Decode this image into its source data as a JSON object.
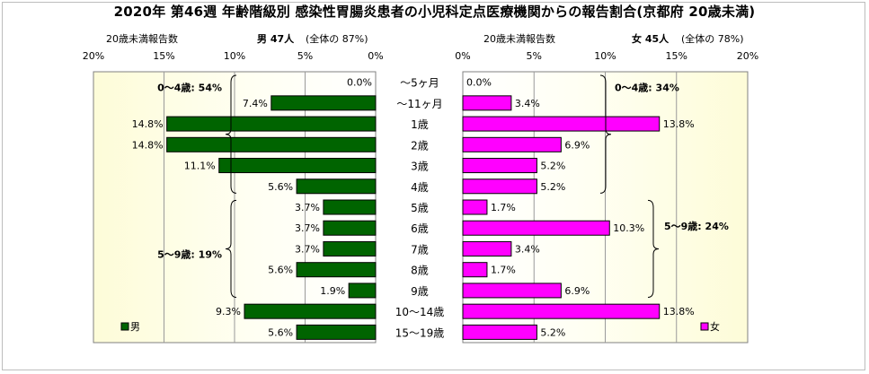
{
  "title": "2020年 第46週 年齢階級別 感染性胃腸炎患者の小児科定点医療機関からの報告割合(京都府 20歳未満)",
  "left_header": {
    "axis_title": "20歳未満報告数",
    "label": "男 47人",
    "paren": "(全体の 87%)"
  },
  "right_header": {
    "axis_title": "20歳未満報告数",
    "label": "女 45人",
    "paren": "(全体の 78%)"
  },
  "chart_data": [
    {
      "type": "bar",
      "orientation": "horizontal",
      "direction": "reversed",
      "name": "男",
      "categories": [
        "～5ヶ月",
        "～11ヶ月",
        "1歳",
        "2歳",
        "3歳",
        "4歳",
        "5歳",
        "6歳",
        "7歳",
        "8歳",
        "9歳",
        "10～14歳",
        "15～19歳"
      ],
      "values": [
        0.0,
        7.4,
        14.8,
        14.8,
        11.1,
        5.6,
        3.7,
        3.7,
        3.7,
        5.6,
        1.9,
        9.3,
        5.6
      ],
      "value_labels": [
        "0.0%",
        "7.4%",
        "14.8%",
        "14.8%",
        "11.1%",
        "5.6%",
        "3.7%",
        "3.7%",
        "3.7%",
        "5.6%",
        "1.9%",
        "9.3%",
        "5.6%"
      ],
      "xlim": [
        0,
        20
      ],
      "ticks": [
        "0%",
        "5%",
        "10%",
        "15%",
        "20%"
      ],
      "color": "#006400",
      "legend": "男",
      "groups": [
        {
          "label": "0～4歳: 54%"
        },
        {
          "label": "5～9歳: 19%"
        }
      ]
    },
    {
      "type": "bar",
      "orientation": "horizontal",
      "name": "女",
      "categories": [
        "～5ヶ月",
        "～11ヶ月",
        "1歳",
        "2歳",
        "3歳",
        "4歳",
        "5歳",
        "6歳",
        "7歳",
        "8歳",
        "9歳",
        "10～14歳",
        "15～19歳"
      ],
      "values": [
        0.0,
        3.4,
        13.8,
        6.9,
        5.2,
        5.2,
        1.7,
        10.3,
        3.4,
        1.7,
        6.9,
        13.8,
        5.2
      ],
      "value_labels": [
        "0.0%",
        "3.4%",
        "13.8%",
        "6.9%",
        "5.2%",
        "5.2%",
        "1.7%",
        "10.3%",
        "3.4%",
        "1.7%",
        "6.9%",
        "13.8%",
        "5.2%"
      ],
      "xlim": [
        0,
        20
      ],
      "ticks": [
        "0%",
        "5%",
        "10%",
        "15%",
        "20%"
      ],
      "color": "#FF00FF",
      "legend": "女",
      "groups": [
        {
          "label": "0～4歳: 34%"
        },
        {
          "label": "5～9歳: 24%"
        }
      ]
    }
  ]
}
